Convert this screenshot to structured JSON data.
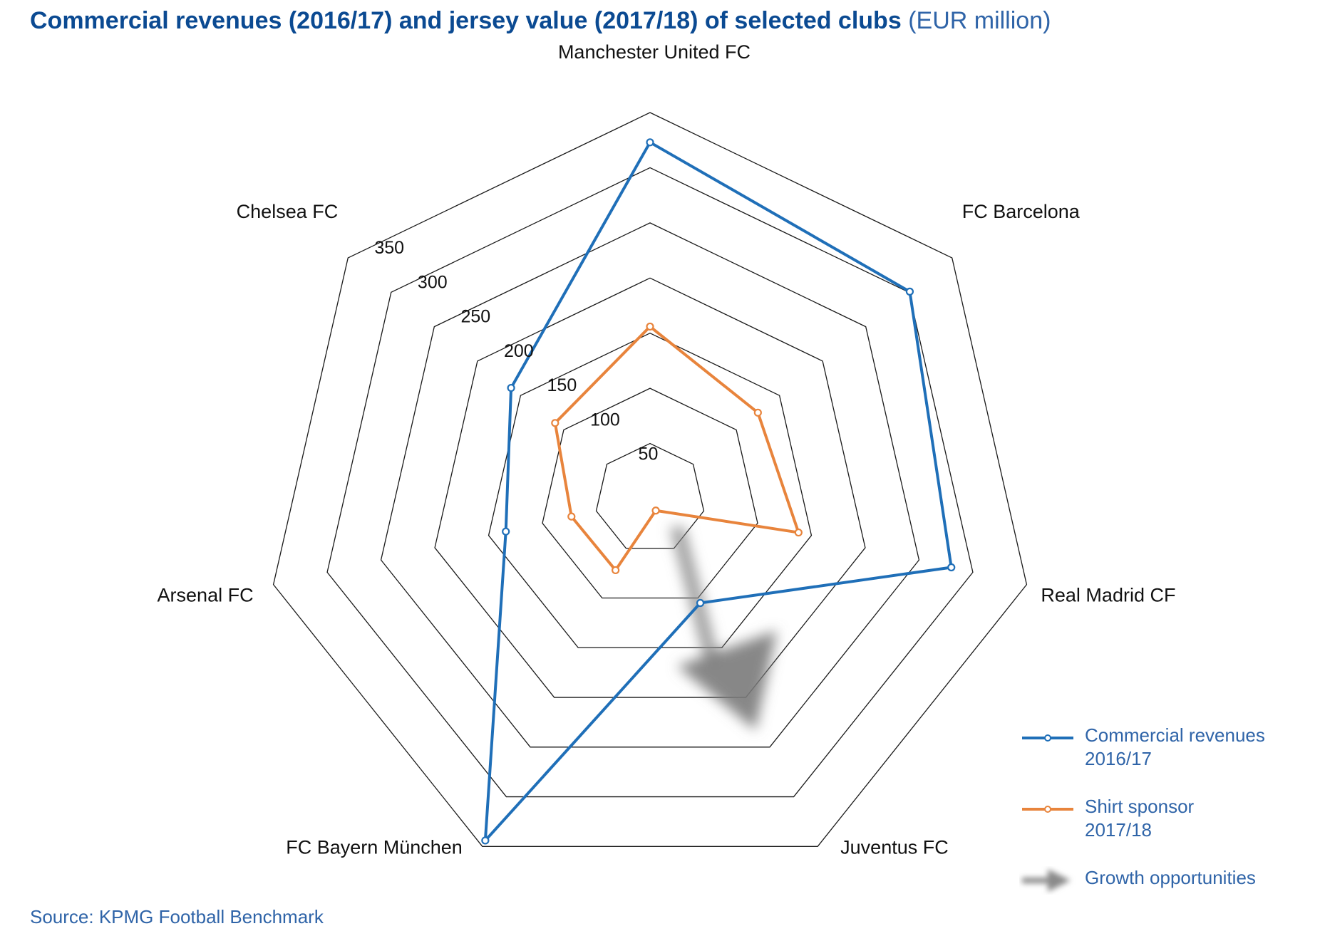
{
  "title": {
    "main": "Commercial revenues (2016/17) and jersey value (2017/18) of selected clubs",
    "unit": "(EUR million)"
  },
  "chart_data": {
    "type": "radar",
    "categories": [
      "Manchester United FC",
      "FC Barcelona",
      "Real Madrid CF",
      "Juventus FC",
      "FC Bayern München",
      "Arsenal FC",
      "Chelsea FC"
    ],
    "ticks": [
      50,
      100,
      150,
      200,
      250,
      300,
      350
    ],
    "max": 350,
    "series": [
      {
        "name": "Commercial revenues 2016/17",
        "color": "#1f6fb8",
        "values": [
          323,
          301,
          280,
          105,
          344,
          134,
          161
        ]
      },
      {
        "name": "Shirt sponsor 2017/18",
        "color": "#e8843c",
        "values": [
          156,
          125,
          138,
          12,
          72,
          73,
          110
        ]
      }
    ],
    "annotation": {
      "type": "growth-arrow",
      "label": "Growth opportunities",
      "color": "#8a8a8a"
    },
    "legend_position": "bottom-right"
  },
  "legend": {
    "items": [
      {
        "line1": "Commercial revenues",
        "line2": "2016/17",
        "color": "#1f6fb8"
      },
      {
        "line1": "Shirt sponsor",
        "line2": "2017/18",
        "color": "#e8843c"
      },
      {
        "line1": "Growth opportunities",
        "line2": "",
        "color": "#8a8a8a",
        "icon": "arrow-icon"
      }
    ]
  },
  "source": "Source: KPMG Football Benchmark"
}
